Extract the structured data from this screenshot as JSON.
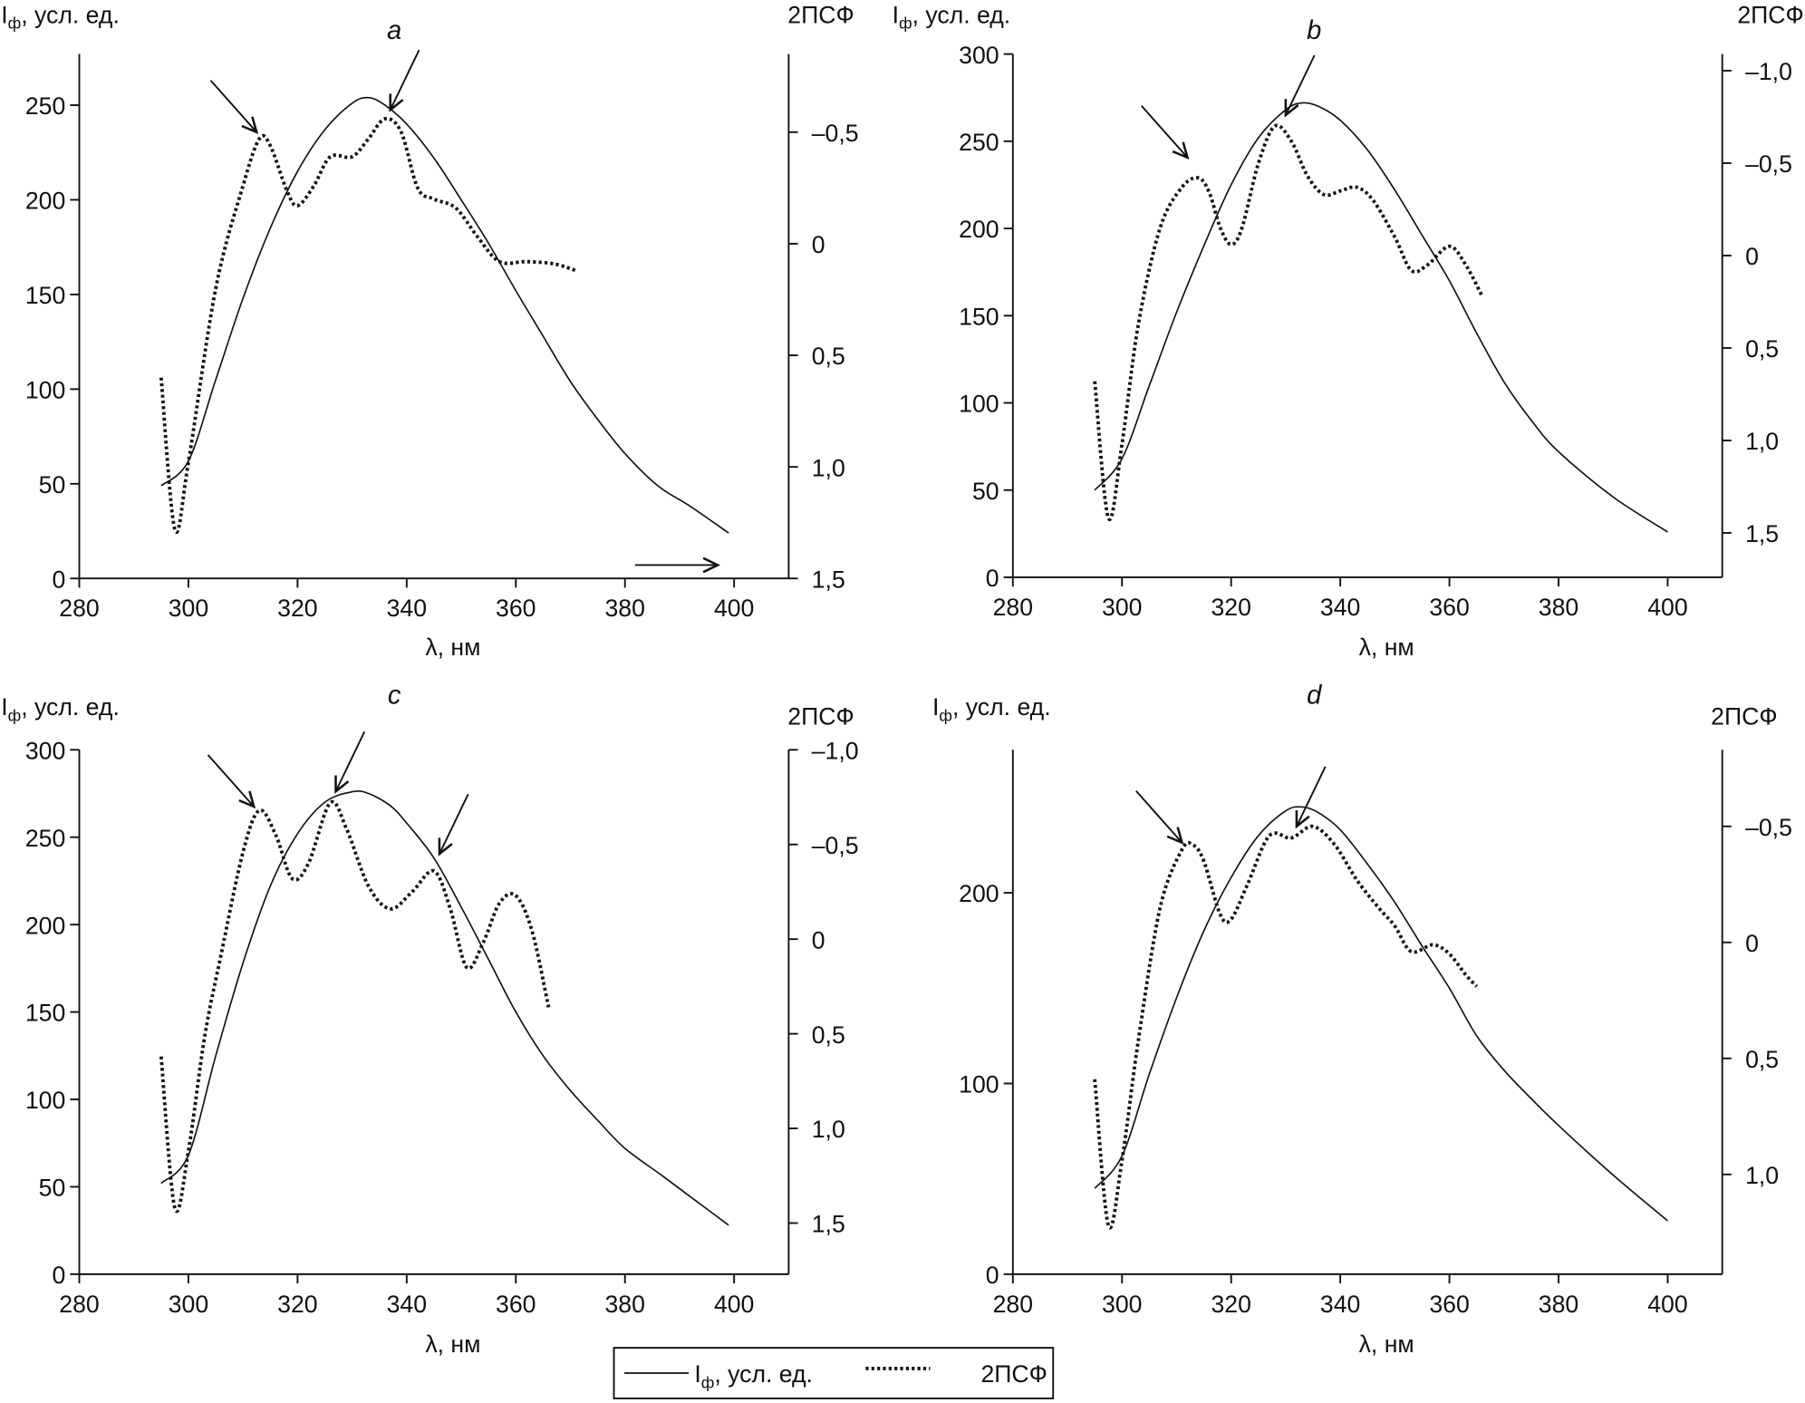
{
  "figure": {
    "xlabel": "λ, нм",
    "ylabel_main": "I",
    "ylabel_sub": "ф",
    "ylabel_rest": ", усл. ед.",
    "y2label": "2ПСФ",
    "line_color": "#111111"
  },
  "legend": {
    "solid_main": "I",
    "solid_sub": "ф",
    "solid_rest": ", усл. ед.",
    "dotted": "2ПСФ"
  },
  "chart_data": [
    {
      "type": "line",
      "letter": "a",
      "xlim": [
        280,
        410
      ],
      "xticks": [
        280,
        300,
        320,
        340,
        360,
        380,
        400
      ],
      "ylim": [
        0,
        277
      ],
      "yticks": [
        0,
        50,
        100,
        150,
        200,
        250
      ],
      "y2lim": [
        -0.85,
        1.5
      ],
      "y2ticks": [
        -0.5,
        0,
        0.5,
        1.0,
        1.5
      ],
      "y2ticklabels": [
        "–0,5",
        "0",
        "0,5",
        "1,0",
        "1,5"
      ],
      "grid": false,
      "series": [
        {
          "name": "Iф, усл. ед.",
          "axis": "left",
          "style": "solid",
          "x": [
            295,
            300,
            305,
            310,
            315,
            320,
            325,
            330,
            333,
            336,
            340,
            345,
            350,
            355,
            360,
            365,
            370,
            375,
            380,
            386,
            392,
            399
          ],
          "y": [
            49,
            62,
            105,
            148,
            185,
            215,
            237,
            251,
            254,
            250,
            240,
            222,
            200,
            177,
            152,
            128,
            104,
            84,
            66,
            49,
            38,
            24
          ]
        },
        {
          "name": "2ПСФ",
          "axis": "right",
          "style": "dotted",
          "x": [
            295,
            297.5,
            300,
            305,
            310,
            313,
            315,
            318,
            320,
            323,
            326,
            330,
            333,
            336,
            339,
            342,
            345,
            349,
            353,
            357,
            362,
            367,
            371
          ],
          "y": [
            0.6,
            1.28,
            0.98,
            0.2,
            -0.26,
            -0.47,
            -0.44,
            -0.24,
            -0.17,
            -0.26,
            -0.39,
            -0.39,
            -0.47,
            -0.56,
            -0.5,
            -0.25,
            -0.2,
            -0.16,
            -0.03,
            0.08,
            0.08,
            0.09,
            0.12
          ]
        }
      ],
      "arrows": [
        {
          "x": 312.5,
          "y2": -0.5,
          "dir": "down-right"
        },
        {
          "x": 337,
          "y2": -0.6,
          "dir": "down-left"
        },
        {
          "x": 397,
          "y2": 1.44,
          "dir": "right"
        }
      ]
    },
    {
      "type": "line",
      "letter": "b",
      "xlim": [
        280,
        410
      ],
      "xticks": [
        280,
        300,
        320,
        340,
        360,
        380,
        400
      ],
      "ylim": [
        0,
        300
      ],
      "yticks": [
        0,
        50,
        100,
        150,
        200,
        250,
        300
      ],
      "y2lim": [
        -1.09,
        1.74
      ],
      "y2ticks": [
        -1.0,
        -0.5,
        0,
        0.5,
        1.0,
        1.5
      ],
      "y2ticklabels": [
        "–1,0",
        "–0,5",
        "0",
        "0,5",
        "1,0",
        "1,5"
      ],
      "grid": false,
      "series": [
        {
          "name": "Iф, усл. ед.",
          "axis": "left",
          "style": "solid",
          "x": [
            295,
            300,
            305,
            310,
            315,
            320,
            325,
            330,
            333,
            336,
            340,
            345,
            350,
            355,
            360,
            365,
            370,
            375,
            380,
            390,
            400
          ],
          "y": [
            50,
            68,
            110,
            152,
            190,
            225,
            252,
            268,
            272,
            270,
            262,
            245,
            222,
            196,
            170,
            140,
            112,
            90,
            72,
            46,
            26
          ]
        },
        {
          "name": "2ПСФ",
          "axis": "right",
          "style": "dotted",
          "x": [
            295,
            297.5,
            300,
            303,
            307,
            311,
            314,
            316,
            318,
            320,
            322,
            325,
            328,
            331,
            334,
            337,
            340,
            343,
            346,
            350,
            353,
            356,
            360,
            363,
            366
          ],
          "y": [
            0.68,
            1.42,
            1.02,
            0.37,
            -0.15,
            -0.37,
            -0.42,
            -0.34,
            -0.15,
            -0.06,
            -0.15,
            -0.5,
            -0.7,
            -0.62,
            -0.43,
            -0.33,
            -0.35,
            -0.37,
            -0.3,
            -0.1,
            0.08,
            0.05,
            -0.05,
            0.05,
            0.22
          ]
        }
      ],
      "arrows": [
        {
          "x": 312,
          "y2": -0.53,
          "dir": "down-right"
        },
        {
          "x": 330,
          "y2": -0.76,
          "dir": "down-left"
        }
      ]
    },
    {
      "type": "line",
      "letter": "c",
      "xlim": [
        280,
        410
      ],
      "xticks": [
        280,
        300,
        320,
        340,
        360,
        380,
        400
      ],
      "ylim": [
        0,
        300
      ],
      "yticks": [
        0,
        50,
        100,
        150,
        200,
        250,
        300
      ],
      "y2lim": [
        -1.0,
        1.77
      ],
      "y2ticks": [
        -1.0,
        -0.5,
        0,
        0.5,
        1.0,
        1.5
      ],
      "y2ticklabels": [
        "–1,0",
        "–0,5",
        "0",
        "0,5",
        "1,0",
        "1,5"
      ],
      "grid": false,
      "series": [
        {
          "name": "Iф, усл. ед.",
          "axis": "left",
          "style": "solid",
          "x": [
            295,
            300,
            305,
            310,
            315,
            320,
            325,
            330,
            333,
            337,
            340,
            345,
            350,
            355,
            360,
            365,
            370,
            375,
            380,
            387,
            393,
            399
          ],
          "y": [
            52,
            68,
            125,
            178,
            222,
            252,
            270,
            276,
            275,
            268,
            258,
            238,
            210,
            180,
            150,
            125,
            105,
            88,
            72,
            56,
            42,
            28
          ]
        },
        {
          "name": "2ПСФ",
          "axis": "right",
          "style": "dotted",
          "x": [
            295,
            297.5,
            300,
            303,
            306,
            310,
            313,
            316,
            319,
            322,
            326,
            329,
            333,
            337,
            341,
            345,
            348,
            351,
            354,
            357,
            360,
            363,
            366
          ],
          "y": [
            0.62,
            1.42,
            1.12,
            0.51,
            0.08,
            -0.46,
            -0.68,
            -0.55,
            -0.32,
            -0.4,
            -0.72,
            -0.58,
            -0.28,
            -0.16,
            -0.25,
            -0.36,
            -0.16,
            0.15,
            0.02,
            -0.19,
            -0.23,
            -0.04,
            0.36
          ]
        }
      ],
      "arrows": [
        {
          "x": 312,
          "y2": -0.7,
          "dir": "down-right"
        },
        {
          "x": 327,
          "y2": -0.78,
          "dir": "down-left"
        },
        {
          "x": 346,
          "y2": -0.45,
          "dir": "down-left"
        }
      ]
    },
    {
      "type": "line",
      "letter": "d",
      "xlim": [
        280,
        410
      ],
      "xticks": [
        280,
        300,
        320,
        340,
        360,
        380,
        400
      ],
      "ylim": [
        0,
        275
      ],
      "yticks": [
        0,
        100,
        200
      ],
      "y2lim": [
        -0.83,
        1.43
      ],
      "y2ticks": [
        -0.5,
        0,
        0.5,
        1.0
      ],
      "y2ticklabels": [
        "–0,5",
        "0",
        "0,5",
        "1,0"
      ],
      "grid": false,
      "series": [
        {
          "name": "Iф, усл. ед.",
          "axis": "left",
          "style": "solid",
          "x": [
            295,
            300,
            305,
            310,
            315,
            320,
            325,
            330,
            333,
            336,
            340,
            345,
            350,
            355,
            360,
            365,
            370,
            375,
            380,
            390,
            400
          ],
          "y": [
            45,
            62,
            105,
            145,
            180,
            208,
            230,
            243,
            245,
            242,
            233,
            215,
            195,
            172,
            150,
            125,
            107,
            92,
            78,
            52,
            28
          ]
        },
        {
          "name": "2ПСФ",
          "axis": "right",
          "style": "dotted",
          "x": [
            295,
            297.5,
            300,
            303,
            307,
            311,
            313,
            315,
            318,
            320,
            323,
            327,
            331,
            335,
            339,
            343,
            347,
            350,
            353,
            357,
            360,
            363,
            365
          ],
          "y": [
            0.59,
            1.22,
            0.94,
            0.42,
            -0.15,
            -0.4,
            -0.42,
            -0.35,
            -0.12,
            -0.1,
            -0.25,
            -0.46,
            -0.45,
            -0.5,
            -0.42,
            -0.27,
            -0.15,
            -0.07,
            0.04,
            0.01,
            0.05,
            0.14,
            0.19
          ]
        }
      ],
      "arrows": [
        {
          "x": 311,
          "y2": -0.43,
          "dir": "down-right"
        },
        {
          "x": 332,
          "y2": -0.5,
          "dir": "down-left"
        }
      ]
    }
  ]
}
